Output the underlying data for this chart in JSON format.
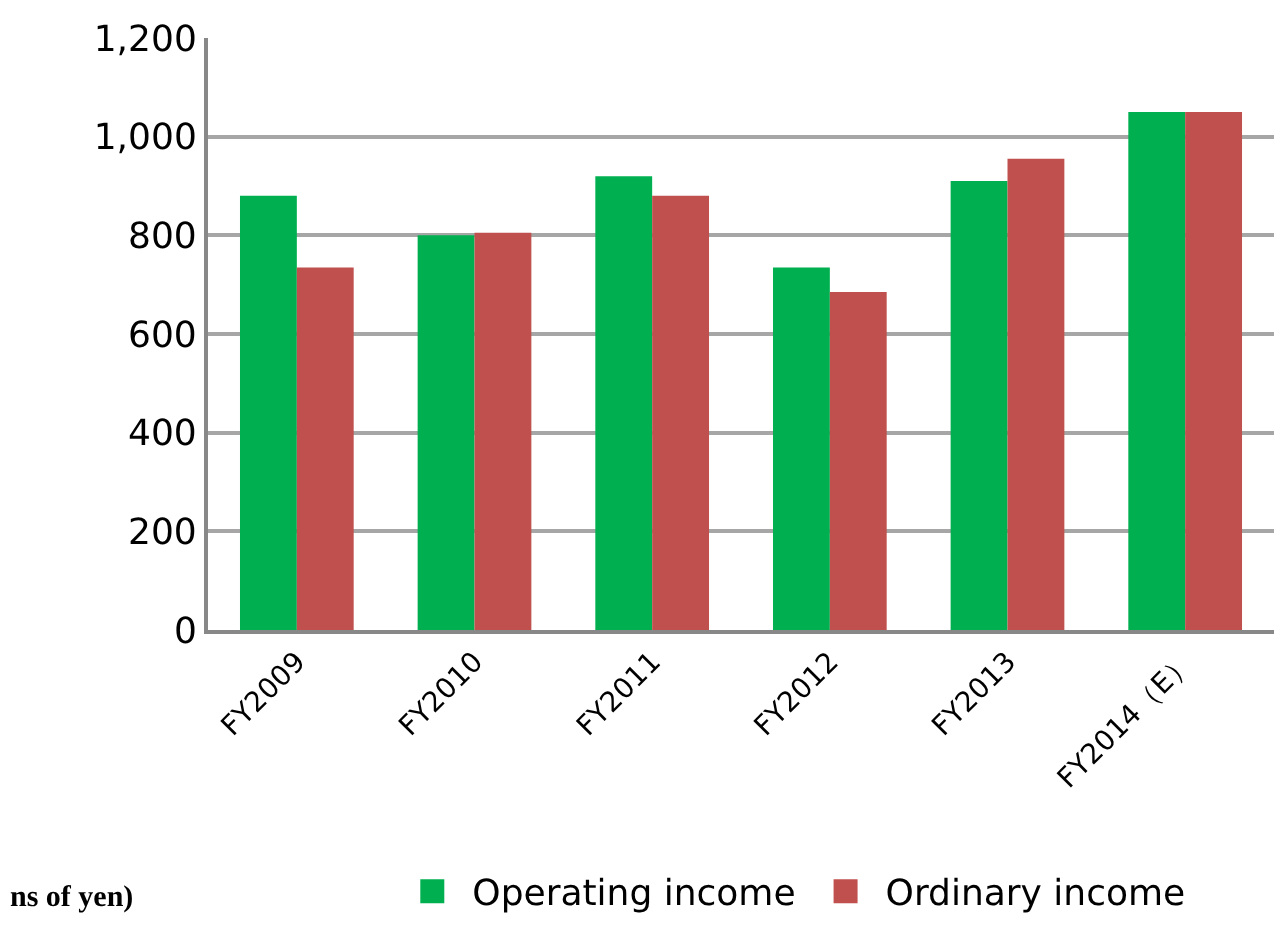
{
  "chart_data": {
    "type": "bar",
    "categories": [
      "FY2009",
      "FY2010",
      "FY2011",
      "FY2012",
      "FY2013",
      "FY2014（E）"
    ],
    "series": [
      {
        "name": "Operating income",
        "color": "#00b050",
        "values": [
          880,
          800,
          920,
          735,
          910,
          1050
        ]
      },
      {
        "name": "Ordinary income",
        "color": "#c0504d",
        "values": [
          735,
          805,
          880,
          685,
          955,
          1050
        ]
      }
    ],
    "ylim": [
      0,
      1200
    ],
    "yticks": [
      0,
      200,
      400,
      600,
      800,
      {
        "value": 1000,
        "label": "1,000"
      },
      {
        "value": 1200,
        "label": "1,200"
      }
    ],
    "grid": "y",
    "legend": "bottom",
    "annotations": [
      "ns of yen)"
    ]
  }
}
